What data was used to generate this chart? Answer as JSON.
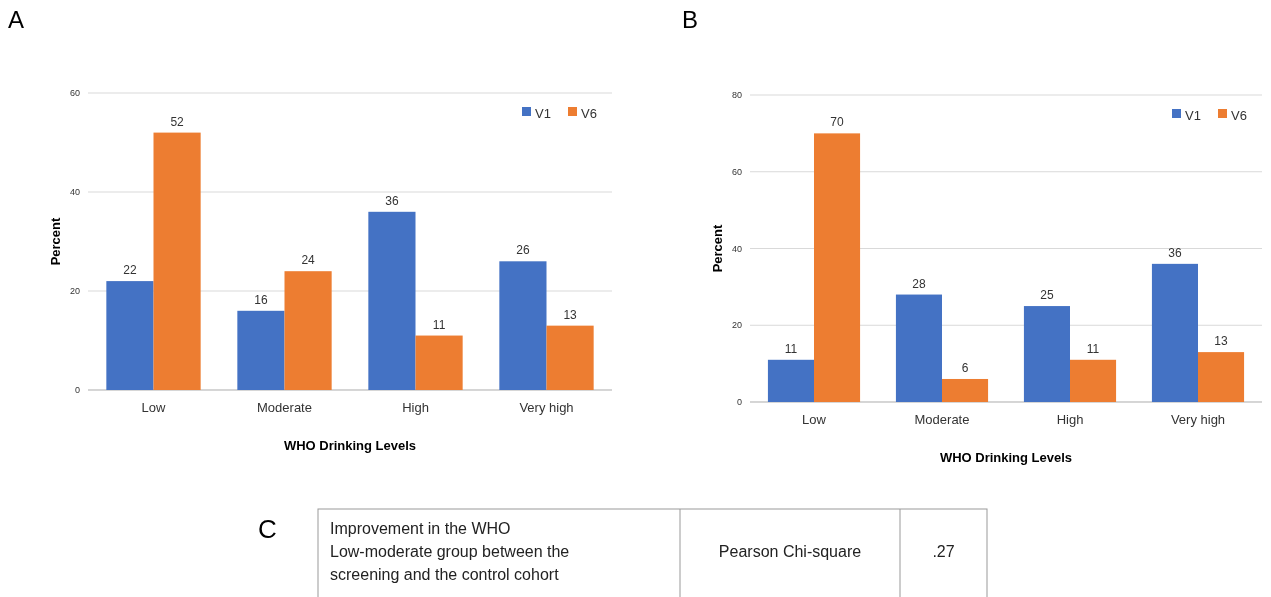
{
  "chart_data": [
    {
      "type": "bar",
      "title": "A",
      "xlabel": "WHO Drinking Levels",
      "ylabel": "Percent",
      "categories": [
        "Low",
        "Moderate",
        "High",
        "Very high"
      ],
      "series": [
        {
          "name": "V1",
          "color": "#4472c4",
          "values": [
            22,
            16,
            36,
            26
          ]
        },
        {
          "name": "V6",
          "color": "#ed7d31",
          "values": [
            52,
            24,
            11,
            13
          ]
        }
      ],
      "ylim": [
        0,
        60
      ],
      "yticks": [
        0,
        20,
        40,
        60
      ],
      "grid": "y",
      "legend": "top right",
      "data_labels": true
    },
    {
      "type": "bar",
      "title": "B",
      "xlabel": "WHO Drinking Levels",
      "ylabel": "Percent",
      "categories": [
        "Low",
        "Moderate",
        "High",
        "Very high"
      ],
      "series": [
        {
          "name": "V1",
          "color": "#4472c4",
          "values": [
            11,
            28,
            25,
            36
          ]
        },
        {
          "name": "V6",
          "color": "#ed7d31",
          "values": [
            70,
            6,
            11,
            13
          ]
        }
      ],
      "ylim": [
        0,
        80
      ],
      "yticks": [
        0,
        20,
        40,
        60,
        80
      ],
      "grid": "y",
      "legend": "top right",
      "data_labels": true
    },
    {
      "type": "other",
      "title": "C",
      "annotations": [
        "Improvement in the WHO Low-moderate group between the screening and the control cohort",
        "Pearson Chi-square",
        ".27"
      ]
    }
  ]
}
